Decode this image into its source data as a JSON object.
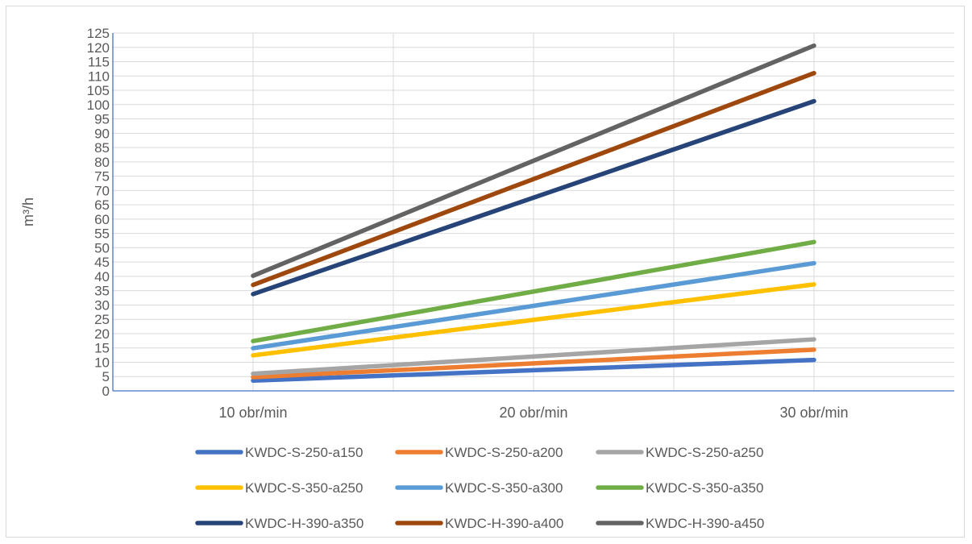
{
  "chart_data": {
    "type": "line",
    "title": "",
    "xlabel": "",
    "ylabel": "m³/h",
    "categories": [
      "10 obr/min",
      "20 obr/min",
      "30 obr/min"
    ],
    "ylim": [
      0,
      125
    ],
    "ytick_step": 5,
    "grid": true,
    "legend_position": "bottom",
    "series": [
      {
        "name": "KWDC-S-250-a150",
        "color": "#4472c4",
        "values": [
          3.6,
          7.2,
          10.8
        ]
      },
      {
        "name": "KWDC-S-250-a200",
        "color": "#ed7d31",
        "values": [
          4.8,
          9.6,
          14.4
        ]
      },
      {
        "name": "KWDC-S-250-a250",
        "color": "#a5a5a5",
        "values": [
          6,
          12,
          18
        ]
      },
      {
        "name": "KWDC-S-350-a250",
        "color": "#ffc000",
        "values": [
          12.4,
          24.8,
          37.2
        ]
      },
      {
        "name": "KWDC-S-350-a300",
        "color": "#5b9bd5",
        "values": [
          14.9,
          29.7,
          44.6
        ]
      },
      {
        "name": "KWDC-S-350-a350",
        "color": "#70ad47",
        "values": [
          17.4,
          34.7,
          52
        ]
      },
      {
        "name": "KWDC-H-390-a350",
        "color": "#264478",
        "values": [
          33.8,
          67.5,
          101.2
        ]
      },
      {
        "name": "KWDC-H-390-a400",
        "color": "#9e480e",
        "values": [
          37,
          74,
          111
        ]
      },
      {
        "name": "KWDC-H-390-a450",
        "color": "#636363",
        "values": [
          40.2,
          80.4,
          120.6
        ]
      }
    ]
  }
}
